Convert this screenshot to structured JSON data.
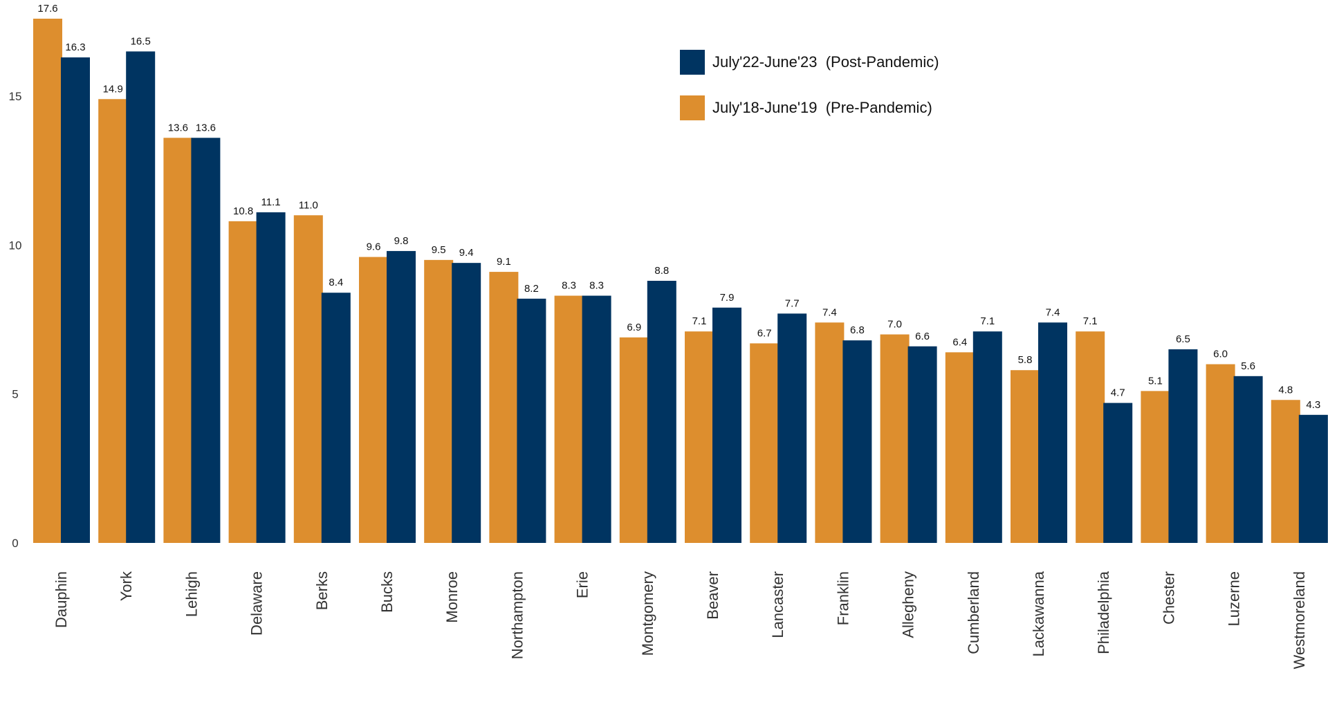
{
  "chart_data": {
    "type": "bar",
    "title": "",
    "xlabel": "",
    "ylabel": "",
    "ylim": [
      0,
      17.6
    ],
    "yticks": [
      0,
      5,
      10,
      15
    ],
    "grid": false,
    "legend_position": "top-right",
    "categories": [
      "Dauphin",
      "York",
      "Lehigh",
      "Delaware",
      "Berks",
      "Bucks",
      "Monroe",
      "Northampton",
      "Erie",
      "Montgomery",
      "Beaver",
      "Lancaster",
      "Franklin",
      "Allegheny",
      "Cumberland",
      "Lackawanna",
      "Philadelphia",
      "Chester",
      "Luzerne",
      "Westmoreland"
    ],
    "series": [
      {
        "name": "July'18-June'19  (Pre-Pandemic)",
        "color": "#DD8E2E",
        "values": [
          17.6,
          14.9,
          13.6,
          10.8,
          11.0,
          9.6,
          9.5,
          9.1,
          8.3,
          6.9,
          7.1,
          6.7,
          7.4,
          7.0,
          6.4,
          5.8,
          7.1,
          5.1,
          6.0,
          4.8
        ],
        "labels": [
          "17.6",
          "14.9",
          "13.6",
          "10.8",
          "11.0",
          "9.6",
          "9.5",
          "9.1",
          "8.3",
          "6.9",
          "7.1",
          "6.7",
          "7.4",
          "7.0",
          "6.4",
          "5.8",
          "7.1",
          "5.1",
          "6.0",
          "4.8"
        ]
      },
      {
        "name": "July'22-June'23  (Post-Pandemic)",
        "color": "#003461",
        "values": [
          16.3,
          16.5,
          13.6,
          11.1,
          8.4,
          9.8,
          9.4,
          8.2,
          8.3,
          8.8,
          7.9,
          7.7,
          6.8,
          6.6,
          7.1,
          7.4,
          4.7,
          6.5,
          5.6,
          4.3
        ],
        "labels": [
          "16.3",
          "16.5",
          "13.6",
          "11.1",
          "8.4",
          "9.8",
          "9.4",
          "8.2",
          "8.3",
          "8.8",
          "7.9",
          "7.7",
          "6.8",
          "6.6",
          "7.1",
          "7.4",
          "4.7",
          "6.5",
          "5.6",
          "4.3"
        ]
      }
    ],
    "legend_order": [
      1,
      0
    ]
  }
}
